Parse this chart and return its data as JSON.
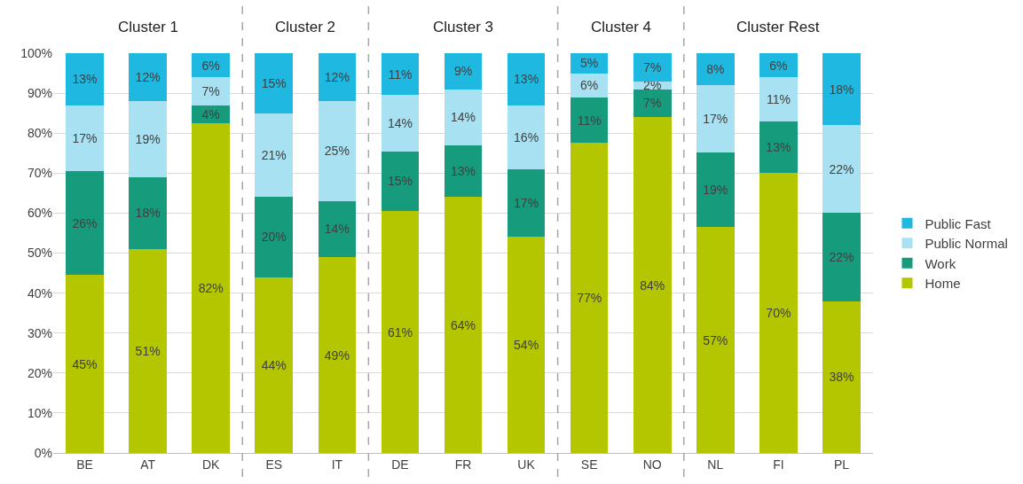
{
  "chart_data": {
    "type": "bar",
    "stacked": true,
    "categories": [
      "BE",
      "AT",
      "DK",
      "ES",
      "IT",
      "DE",
      "FR",
      "UK",
      "SE",
      "NO",
      "NL",
      "FI",
      "PL"
    ],
    "series": [
      {
        "name": "Home",
        "color": "#b3c600",
        "values": [
          44.5,
          51,
          82.5,
          44,
          49,
          60.5,
          64,
          54,
          77.5,
          84,
          56.5,
          70,
          38
        ],
        "value_labels": [
          "45%",
          "51%",
          "82%",
          "44%",
          "49%",
          "61%",
          "64%",
          "54%",
          "77%",
          "84%",
          "57%",
          "70%",
          "38%"
        ]
      },
      {
        "name": "Work",
        "color": "#169b7c",
        "values": [
          26,
          18,
          4.5,
          20,
          14,
          15,
          13,
          17,
          11.5,
          7,
          18.7,
          13,
          22
        ],
        "value_labels": [
          "26%",
          "18%",
          "4%",
          "20%",
          "14%",
          "15%",
          "13%",
          "17%",
          "11%",
          "7%",
          "19%",
          "13%",
          "22%"
        ]
      },
      {
        "name": "Public Normal",
        "color": "#a8e2f2",
        "values": [
          16.5,
          19,
          7,
          21,
          25,
          14,
          14,
          16,
          6,
          2,
          16.8,
          11,
          22
        ],
        "value_labels": [
          "17%",
          "19%",
          "7%",
          "21%",
          "25%",
          "14%",
          "14%",
          "16%",
          "6%",
          "2%",
          "17%",
          "11%",
          "22%"
        ]
      },
      {
        "name": "Public Fast",
        "color": "#1fb8e0",
        "values": [
          13,
          12,
          6,
          15,
          12,
          10.5,
          9,
          13,
          5,
          7,
          8,
          6,
          18
        ],
        "value_labels": [
          "13%",
          "12%",
          "6%",
          "15%",
          "12%",
          "11%",
          "9%",
          "13%",
          "5%",
          "7%",
          "8%",
          "6%",
          "18%"
        ]
      }
    ],
    "ylim": [
      0,
      100
    ],
    "yticks": [
      {
        "value": 0,
        "label": "0%"
      },
      {
        "value": 10,
        "label": "10%"
      },
      {
        "value": 20,
        "label": "20%"
      },
      {
        "value": 30,
        "label": "30%"
      },
      {
        "value": 40,
        "label": "40%"
      },
      {
        "value": 50,
        "label": "50%"
      },
      {
        "value": 60,
        "label": "60%"
      },
      {
        "value": 70,
        "label": "70%"
      },
      {
        "value": 80,
        "label": "80%"
      },
      {
        "value": 90,
        "label": "90%"
      },
      {
        "value": 100,
        "label": "100%"
      }
    ],
    "grid": "y",
    "legend": "right",
    "annotations": [
      "Cluster 1",
      "Cluster 2",
      "Cluster 3",
      "Cluster 4",
      "Cluster Rest"
    ]
  }
}
